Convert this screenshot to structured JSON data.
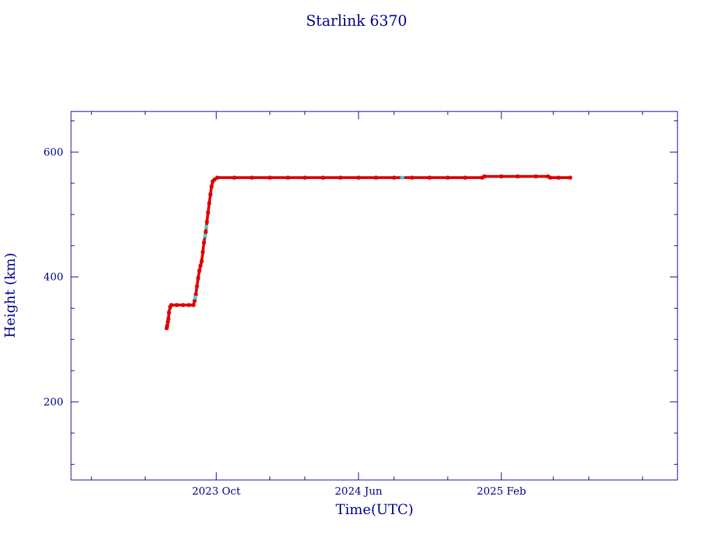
{
  "chart_data": {
    "type": "scatter",
    "title": "Starlink 6370",
    "xlabel": "Time(UTC)",
    "ylabel": "Height (km)",
    "x_ticks": [
      {
        "label": "2023 Oct",
        "date": "2023-10-01"
      },
      {
        "label": "2024 Jun",
        "date": "2024-06-01"
      },
      {
        "label": "2025 Feb",
        "date": "2025-02-01"
      }
    ],
    "x_minor_ticks": [
      "2023-03-01",
      "2023-06-01",
      "2024-01-01",
      "2024-03-01",
      "2024-08-01",
      "2024-11-01",
      "2025-05-01",
      "2025-07-01",
      "2025-10-01"
    ],
    "y_ticks": [
      200,
      400,
      600
    ],
    "y_minor_ticks": [
      100,
      150,
      250,
      300,
      350,
      450,
      500,
      550,
      650
    ],
    "xlim": [
      "2023-01-25",
      "2025-11-30"
    ],
    "ylim": [
      75,
      665
    ],
    "grid": false,
    "colors": {
      "axis": "#00008b",
      "points": "#dd0000",
      "highlight": "#40d8d8"
    },
    "series": [
      {
        "values": [
          {
            "x": "2023-07-08",
            "y": 318
          },
          {
            "x": "2023-07-09",
            "y": 322
          },
          {
            "x": "2023-07-10",
            "y": 328
          },
          {
            "x": "2023-07-11",
            "y": 333
          },
          {
            "x": "2023-07-12",
            "y": 343
          },
          {
            "x": "2023-07-14",
            "y": 352
          },
          {
            "x": "2023-07-16",
            "y": 355
          },
          {
            "x": "2023-07-25",
            "y": 355
          },
          {
            "x": "2023-08-05",
            "y": 355
          },
          {
            "x": "2023-08-15",
            "y": 355
          },
          {
            "x": "2023-08-23",
            "y": 355
          },
          {
            "x": "2023-08-25",
            "y": 362
          },
          {
            "x": "2023-08-27",
            "y": 372
          },
          {
            "x": "2023-08-29",
            "y": 385
          },
          {
            "x": "2023-08-31",
            "y": 398
          },
          {
            "x": "2023-09-02",
            "y": 410
          },
          {
            "x": "2023-09-04",
            "y": 418
          },
          {
            "x": "2023-09-06",
            "y": 425
          },
          {
            "x": "2023-09-08",
            "y": 440
          },
          {
            "x": "2023-09-10",
            "y": 455
          },
          {
            "x": "2023-09-13",
            "y": 472
          },
          {
            "x": "2023-09-15",
            "y": 488
          },
          {
            "x": "2023-09-17",
            "y": 503
          },
          {
            "x": "2023-09-19",
            "y": 518
          },
          {
            "x": "2023-09-21",
            "y": 532
          },
          {
            "x": "2023-09-23",
            "y": 545
          },
          {
            "x": "2023-09-25",
            "y": 553
          },
          {
            "x": "2023-09-28",
            "y": 556
          },
          {
            "x": "2023-10-03",
            "y": 559
          },
          {
            "x": "2023-11-01",
            "y": 559
          },
          {
            "x": "2023-12-01",
            "y": 559
          },
          {
            "x": "2024-01-01",
            "y": 559
          },
          {
            "x": "2024-02-01",
            "y": 559
          },
          {
            "x": "2024-03-01",
            "y": 559
          },
          {
            "x": "2024-04-01",
            "y": 559
          },
          {
            "x": "2024-05-01",
            "y": 559
          },
          {
            "x": "2024-06-01",
            "y": 559
          },
          {
            "x": "2024-07-01",
            "y": 559
          },
          {
            "x": "2024-08-01",
            "y": 559
          },
          {
            "x": "2024-09-01",
            "y": 559
          },
          {
            "x": "2024-10-01",
            "y": 559
          },
          {
            "x": "2024-11-01",
            "y": 559
          },
          {
            "x": "2024-12-01",
            "y": 559
          },
          {
            "x": "2024-12-30",
            "y": 559
          },
          {
            "x": "2025-01-03",
            "y": 561
          },
          {
            "x": "2025-02-01",
            "y": 561
          },
          {
            "x": "2025-03-01",
            "y": 561
          },
          {
            "x": "2025-04-01",
            "y": 561
          },
          {
            "x": "2025-04-22",
            "y": 561
          },
          {
            "x": "2025-04-26",
            "y": 559
          },
          {
            "x": "2025-05-10",
            "y": 559
          },
          {
            "x": "2025-05-30",
            "y": 559
          }
        ]
      }
    ],
    "highlighted_points": [
      {
        "x": "2023-08-26",
        "y": 367
      },
      {
        "x": "2023-09-12",
        "y": 466
      },
      {
        "x": "2023-09-14",
        "y": 480
      },
      {
        "x": "2024-08-15",
        "y": 559
      }
    ]
  }
}
